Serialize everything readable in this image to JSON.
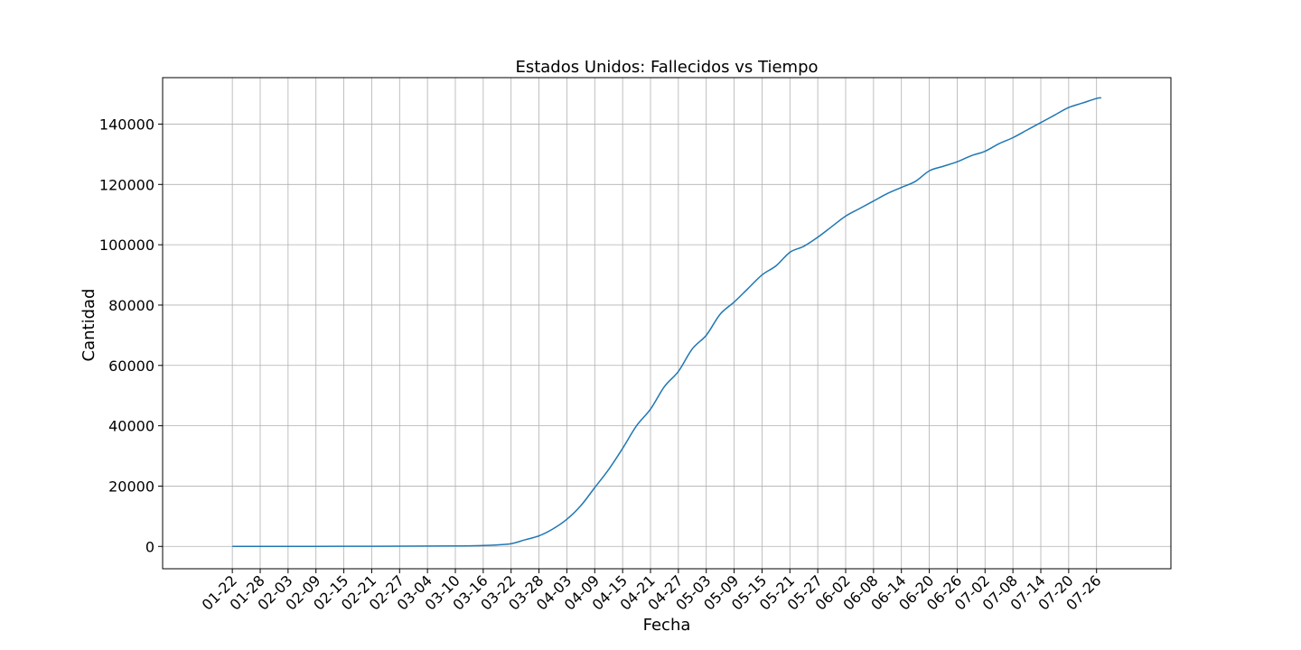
{
  "chart_data": {
    "type": "line",
    "title": "Estados Unidos: Fallecidos vs Tiempo",
    "xlabel": "Fecha",
    "ylabel": "Cantidad",
    "grid": true,
    "line_color": "#1f77b4",
    "ylim": [
      -7400,
      155400
    ],
    "xlim": [
      "01-07",
      "08-11"
    ],
    "x_ticks": [
      "01-22",
      "01-28",
      "02-03",
      "02-09",
      "02-15",
      "02-21",
      "02-27",
      "03-04",
      "03-10",
      "03-16",
      "03-22",
      "03-28",
      "04-03",
      "04-09",
      "04-15",
      "04-21",
      "04-27",
      "05-03",
      "05-09",
      "05-15",
      "05-21",
      "05-27",
      "06-02",
      "06-08",
      "06-14",
      "06-20",
      "06-26",
      "07-02",
      "07-08",
      "07-14",
      "07-20",
      "07-26"
    ],
    "y_ticks": [
      0,
      20000,
      40000,
      60000,
      80000,
      100000,
      120000,
      140000
    ],
    "series": [
      {
        "x": [
          "01-22",
          "02-22",
          "03-10",
          "03-16",
          "03-19",
          "03-22",
          "03-25",
          "03-28",
          "03-31",
          "04-03",
          "04-06",
          "04-09",
          "04-12",
          "04-15",
          "04-18",
          "04-21",
          "04-24",
          "04-27",
          "04-30",
          "05-03",
          "05-06",
          "05-09",
          "05-12",
          "05-15",
          "05-18",
          "05-21",
          "05-24",
          "05-27",
          "05-30",
          "06-02",
          "06-05",
          "06-08",
          "06-11",
          "06-14",
          "06-17",
          "06-20",
          "06-23",
          "06-26",
          "06-29",
          "07-02",
          "07-05",
          "07-08",
          "07-11",
          "07-14",
          "07-17",
          "07-20",
          "07-23",
          "07-26",
          "07-27"
        ],
        "y": [
          0,
          50,
          150,
          300,
          500,
          900,
          2200,
          3500,
          5800,
          9000,
          13500,
          19500,
          25500,
          32500,
          40000,
          45500,
          53000,
          58000,
          65500,
          70000,
          77000,
          81000,
          85500,
          90000,
          93000,
          97500,
          99500,
          102500,
          106000,
          109500,
          112000,
          114500,
          117000,
          119000,
          121000,
          124500,
          126000,
          127500,
          129500,
          131000,
          133500,
          135500,
          138000,
          140500,
          143000,
          145500,
          147000,
          148500,
          148700
        ]
      }
    ]
  }
}
